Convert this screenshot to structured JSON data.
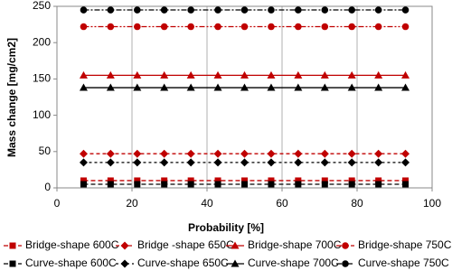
{
  "chart_data": {
    "type": "line",
    "xlabel": "Probability [%]",
    "ylabel": "Mass change [mg/cm2]",
    "x": [
      7.1,
      14.3,
      21.4,
      28.6,
      35.7,
      42.9,
      50,
      57.1,
      64.3,
      71.4,
      78.6,
      85.7,
      92.9
    ],
    "xlim": [
      0,
      100
    ],
    "xticks": [
      0,
      20,
      40,
      60,
      80,
      100
    ],
    "ylim": [
      0,
      250
    ],
    "yticks": [
      0,
      50,
      100,
      150,
      200,
      250
    ],
    "grid": "x",
    "series": [
      {
        "name": "Bridge-shape 600C",
        "color": "#c00000",
        "marker": "square",
        "dash": "5,3",
        "values": [
          10,
          10,
          10,
          10,
          10,
          10,
          10,
          10,
          10,
          10,
          10,
          10,
          10
        ]
      },
      {
        "name": "Bridge -shape 650C",
        "color": "#c00000",
        "marker": "diamond",
        "dash": "4,3",
        "values": [
          47,
          47,
          47,
          47,
          47,
          47,
          47,
          47,
          47,
          47,
          47,
          47,
          47
        ]
      },
      {
        "name": "Bridge-shape 700C",
        "color": "#c00000",
        "marker": "triangle",
        "dash": "none",
        "values": [
          155,
          155,
          155,
          155,
          155,
          155,
          155,
          155,
          155,
          155,
          155,
          155,
          155
        ]
      },
      {
        "name": "Bridge-shape 750C",
        "color": "#c00000",
        "marker": "circle",
        "dash": "6,2,2,2,2,2",
        "values": [
          222,
          222,
          222,
          222,
          222,
          222,
          222,
          222,
          222,
          222,
          222,
          222,
          222
        ]
      },
      {
        "name": "Curve-shape 600C",
        "color": "#000000",
        "marker": "square",
        "dash": "5,3",
        "values": [
          5,
          5,
          5,
          5,
          5,
          5,
          5,
          5,
          5,
          5,
          5,
          5,
          5
        ]
      },
      {
        "name": "Curve-shape 650C",
        "color": "#000000",
        "marker": "diamond",
        "dash": "3,3",
        "values": [
          35,
          35,
          35,
          35,
          35,
          35,
          35,
          35,
          35,
          35,
          35,
          35,
          35
        ]
      },
      {
        "name": "Curve-shape 700C",
        "color": "#000000",
        "marker": "triangle",
        "dash": "none",
        "values": [
          138,
          138,
          138,
          138,
          138,
          138,
          138,
          138,
          138,
          138,
          138,
          138,
          138
        ]
      },
      {
        "name": "Curve-shape 750C",
        "color": "#000000",
        "marker": "circle",
        "dash": "6,2,2,2",
        "values": [
          245,
          245,
          245,
          245,
          245,
          245,
          245,
          245,
          245,
          245,
          245,
          245,
          245
        ]
      }
    ]
  }
}
